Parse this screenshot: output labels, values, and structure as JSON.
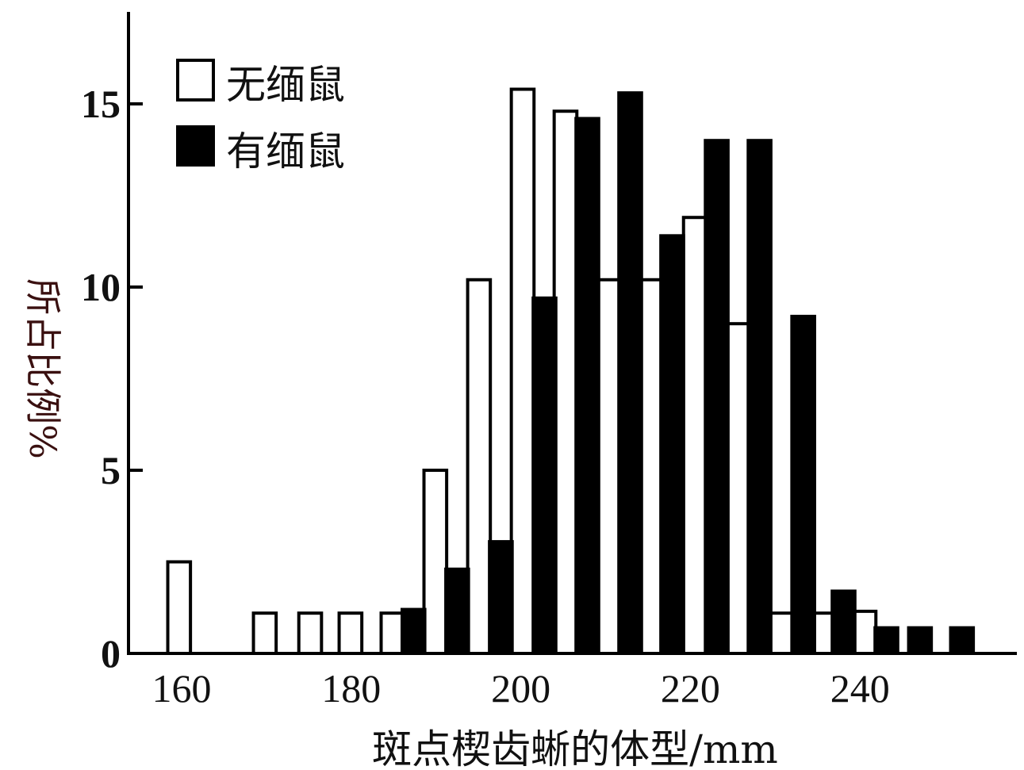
{
  "chart_data": {
    "type": "bar",
    "title": "",
    "xlabel": "斑点楔齿蜥的体型/mm",
    "ylabel": "所占比例%",
    "xlim": [
      160,
      260
    ],
    "ylim": [
      0,
      17
    ],
    "xticks": [
      160,
      180,
      200,
      220,
      240
    ],
    "yticks": [
      0,
      5,
      10,
      15
    ],
    "bar_width": 2.7,
    "legend_position": "top-left",
    "series": [
      {
        "name": "无缅鼠",
        "color": "#ffffff",
        "x": [
          159.7,
          169.9,
          175.3,
          180.1,
          185.1,
          190.2,
          195.4,
          200.6,
          205.7,
          210.8,
          215.8,
          221.1,
          226.3,
          231.4,
          236.3,
          241.3
        ],
        "values": [
          2.5,
          1.1,
          1.1,
          1.1,
          1.1,
          5.0,
          10.2,
          15.4,
          14.8,
          10.2,
          10.2,
          11.9,
          9.0,
          1.1,
          1.1,
          1.15
        ]
      },
      {
        "name": "有缅鼠",
        "color": "#000000",
        "x": [
          187.6,
          192.8,
          198.0,
          203.2,
          208.3,
          213.4,
          218.4,
          223.7,
          228.8,
          234.0,
          238.8,
          243.9,
          247.9,
          252.9
        ],
        "values": [
          1.2,
          2.3,
          3.05,
          9.7,
          14.6,
          15.3,
          11.4,
          14.0,
          14.0,
          9.2,
          1.7,
          0.7,
          0.7,
          0.7
        ]
      }
    ]
  }
}
